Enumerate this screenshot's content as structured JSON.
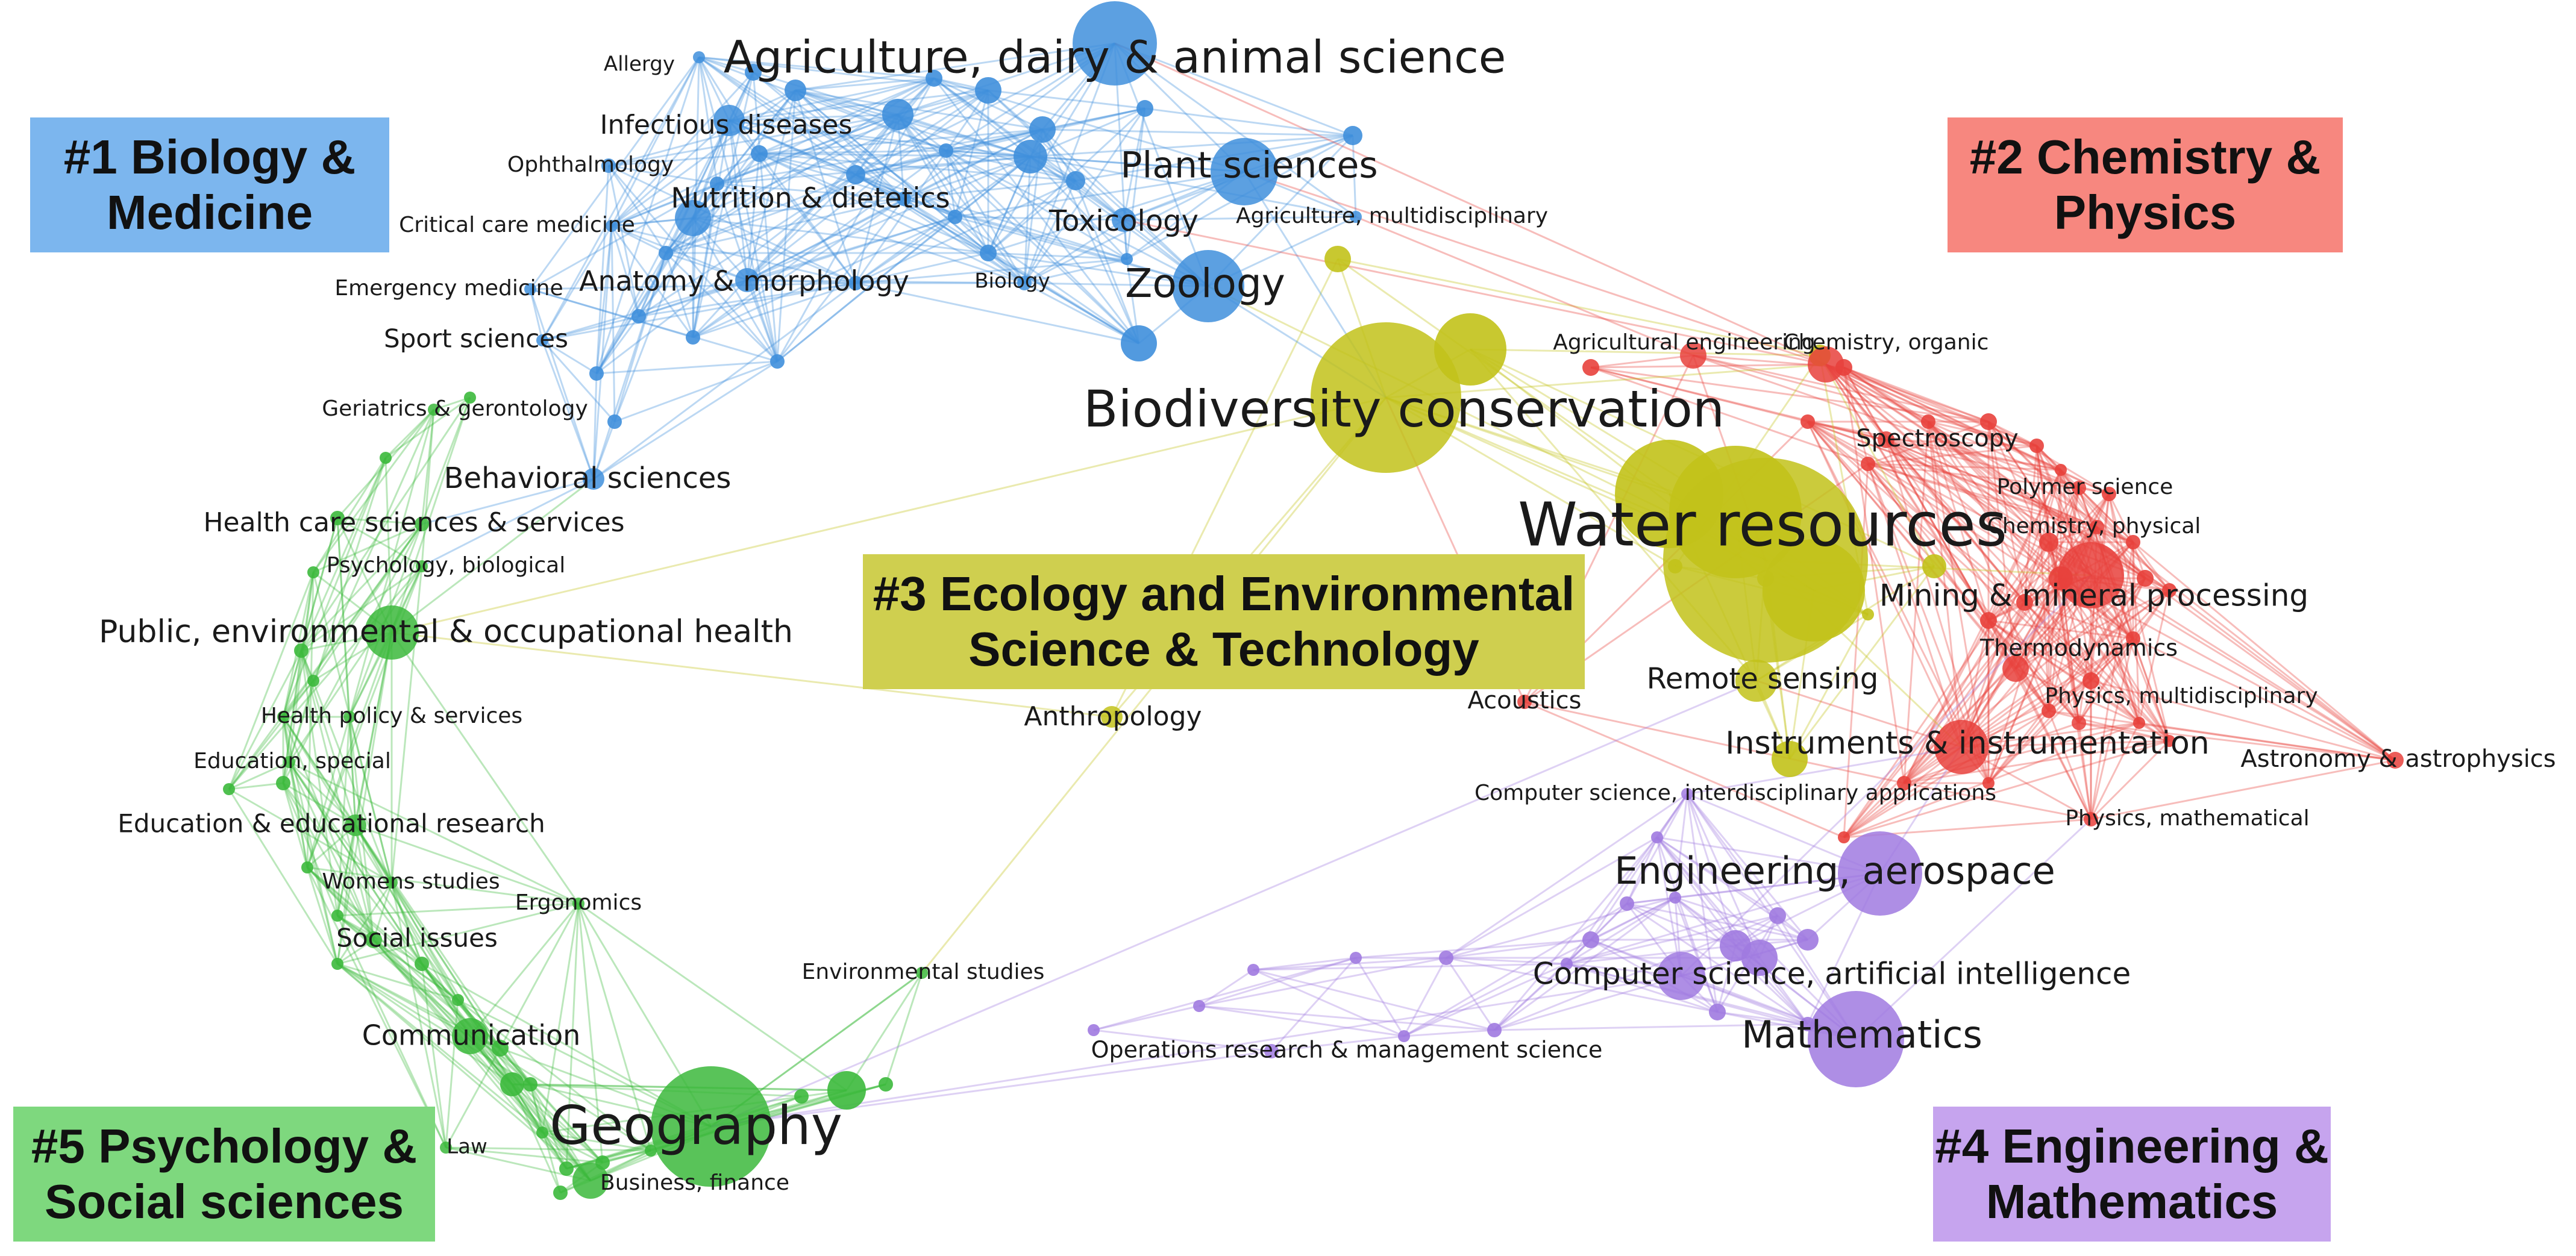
{
  "clusters": [
    {
      "id": 1,
      "label": "#1 Biology &\nMedicine",
      "color": "#3f8fdc"
    },
    {
      "id": 2,
      "label": "#2 Chemistry &\nPhysics",
      "color": "#e8413c"
    },
    {
      "id": 3,
      "label": "#3 Ecology and Environmental\nScience & Technology",
      "color": "#c2c21a"
    },
    {
      "id": 4,
      "label": "#4 Engineering &\nMathematics",
      "color": "#a07ae0"
    },
    {
      "id": 5,
      "label": "#5 Psychology &\nSocial sciences",
      "color": "#3cb93c"
    }
  ],
  "nodes": [
    {
      "id": "agri",
      "label": "Agriculture, dairy & animal science",
      "cluster": 1,
      "weight": 4
    },
    {
      "id": "allergy",
      "label": "Allergy",
      "cluster": 1,
      "weight": 1
    },
    {
      "id": "infect",
      "label": "Infectious diseases",
      "cluster": 1,
      "weight": 2
    },
    {
      "id": "ophth",
      "label": "Ophthalmology",
      "cluster": 1,
      "weight": 1
    },
    {
      "id": "nutri",
      "label": "Nutrition & dietetics",
      "cluster": 1,
      "weight": 2
    },
    {
      "id": "critcare",
      "label": "Critical care medicine",
      "cluster": 1,
      "weight": 1
    },
    {
      "id": "plant",
      "label": "Plant sciences",
      "cluster": 1,
      "weight": 3
    },
    {
      "id": "toxic",
      "label": "Toxicology",
      "cluster": 1,
      "weight": 2
    },
    {
      "id": "agmulti",
      "label": "Agriculture, multidisciplinary",
      "cluster": 1,
      "weight": 1
    },
    {
      "id": "emerg",
      "label": "Emergency medicine",
      "cluster": 1,
      "weight": 1
    },
    {
      "id": "anat",
      "label": "Anatomy & morphology",
      "cluster": 1,
      "weight": 2
    },
    {
      "id": "bio",
      "label": "Biology",
      "cluster": 1,
      "weight": 1
    },
    {
      "id": "zoo",
      "label": "Zoology",
      "cluster": 1,
      "weight": 3
    },
    {
      "id": "sport",
      "label": "Sport sciences",
      "cluster": 1,
      "weight": 1
    },
    {
      "id": "geri",
      "label": "Geriatrics & gerontology",
      "cluster": 5,
      "weight": 1
    },
    {
      "id": "behav",
      "label": "Behavioral sciences",
      "cluster": 1,
      "weight": 2
    },
    {
      "id": "hcss",
      "label": "Health care sciences & services",
      "cluster": 5,
      "weight": 1
    },
    {
      "id": "psybio",
      "label": "Psychology, biological",
      "cluster": 5,
      "weight": 1
    },
    {
      "id": "pubhealth",
      "label": "Public, environmental & occupational health",
      "cluster": 5,
      "weight": 3
    },
    {
      "id": "hpol",
      "label": "Health policy & services",
      "cluster": 5,
      "weight": 1
    },
    {
      "id": "edspec",
      "label": "Education, special",
      "cluster": 5,
      "weight": 1
    },
    {
      "id": "edres",
      "label": "Education & educational research",
      "cluster": 5,
      "weight": 1
    },
    {
      "id": "women",
      "label": "Womens studies",
      "cluster": 5,
      "weight": 1
    },
    {
      "id": "ergo",
      "label": "Ergonomics",
      "cluster": 5,
      "weight": 1
    },
    {
      "id": "social",
      "label": "Social issues",
      "cluster": 5,
      "weight": 1
    },
    {
      "id": "envstud",
      "label": "Environmental studies",
      "cluster": 5,
      "weight": 1
    },
    {
      "id": "comm",
      "label": "Communication",
      "cluster": 5,
      "weight": 2
    },
    {
      "id": "geo",
      "label": "Geography",
      "cluster": 5,
      "weight": 5
    },
    {
      "id": "law",
      "label": "Law",
      "cluster": 5,
      "weight": 1
    },
    {
      "id": "busfin",
      "label": "Business, finance",
      "cluster": 5,
      "weight": 1
    },
    {
      "id": "biodiv",
      "label": "Biodiversity conservation",
      "cluster": 3,
      "weight": 6
    },
    {
      "id": "water",
      "label": "Water resources",
      "cluster": 3,
      "weight": 7
    },
    {
      "id": "remote",
      "label": "Remote sensing",
      "cluster": 3,
      "weight": 2
    },
    {
      "id": "anthro",
      "label": "Anthropology",
      "cluster": 3,
      "weight": 1
    },
    {
      "id": "acoustics",
      "label": "Acoustics",
      "cluster": 2,
      "weight": 1
    },
    {
      "id": "agreng",
      "label": "Agricultural engineering",
      "cluster": 2,
      "weight": 1
    },
    {
      "id": "chemorg",
      "label": "Chemistry, organic",
      "cluster": 2,
      "weight": 2
    },
    {
      "id": "spectro",
      "label": "Spectroscopy",
      "cluster": 2,
      "weight": 1
    },
    {
      "id": "polymer",
      "label": "Polymer science",
      "cluster": 2,
      "weight": 1
    },
    {
      "id": "chemphys",
      "label": "Chemistry, physical",
      "cluster": 2,
      "weight": 1
    },
    {
      "id": "mining",
      "label": "Mining & mineral processing",
      "cluster": 2,
      "weight": 2
    },
    {
      "id": "thermo",
      "label": "Thermodynamics",
      "cluster": 2,
      "weight": 2
    },
    {
      "id": "physmulti",
      "label": "Physics, multidisciplinary",
      "cluster": 2,
      "weight": 1
    },
    {
      "id": "instr",
      "label": "Instruments & instrumentation",
      "cluster": 2,
      "weight": 2
    },
    {
      "id": "astro",
      "label": "Astronomy & astrophysics",
      "cluster": 2,
      "weight": 1
    },
    {
      "id": "physmath",
      "label": "Physics, mathematical",
      "cluster": 2,
      "weight": 1
    },
    {
      "id": "csinter",
      "label": "Computer science, interdisciplinary applications",
      "cluster": 4,
      "weight": 1
    },
    {
      "id": "aero",
      "label": "Engineering, aerospace",
      "cluster": 4,
      "weight": 3
    },
    {
      "id": "csai",
      "label": "Computer science, artificial intelligence",
      "cluster": 4,
      "weight": 3
    },
    {
      "id": "opsres",
      "label": "Operations research & management science",
      "cluster": 4,
      "weight": 1
    },
    {
      "id": "math",
      "label": "Mathematics",
      "cluster": 4,
      "weight": 3
    }
  ]
}
